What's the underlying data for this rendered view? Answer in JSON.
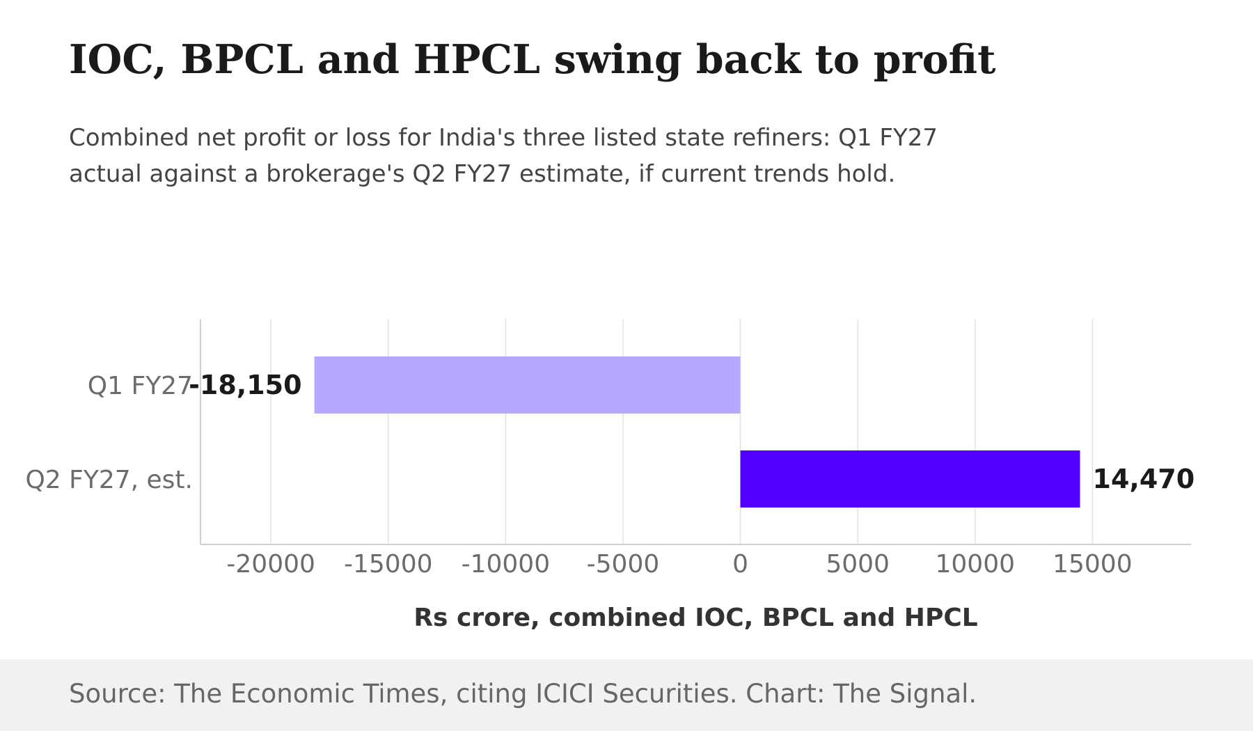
{
  "header": {
    "title": "IOC, BPCL and HPCL swing back to profit",
    "subtitle": "Combined net profit or loss for India's three listed state refiners: Q1 FY27 actual against a brokerage's Q2 FY27 estimate, if current trends hold."
  },
  "footer": {
    "source": "Source: The Economic Times, citing ICICI Securities. Chart: The Signal."
  },
  "chart_data": {
    "type": "bar",
    "orientation": "horizontal",
    "title": "IOC, BPCL and HPCL swing back to profit",
    "xlabel": "Rs crore, combined IOC, BPCL and HPCL",
    "ylabel": "",
    "categories": [
      "Q1 FY27",
      "Q2 FY27, est."
    ],
    "values": [
      -18150,
      14470
    ],
    "data_labels": [
      "-18,150",
      "14,470"
    ],
    "bar_colors": [
      "#b5a8ff",
      "#5200ff"
    ],
    "xlim": [
      -23000,
      19200
    ],
    "xticks": [
      -20000,
      -15000,
      -10000,
      -5000,
      0,
      5000,
      10000,
      15000
    ],
    "xtick_labels": [
      "-20000",
      "-15000",
      "-10000",
      "-5000",
      "0",
      "5000",
      "10000",
      "15000"
    ],
    "grid": "vertical gridlines on",
    "legend": "none"
  }
}
